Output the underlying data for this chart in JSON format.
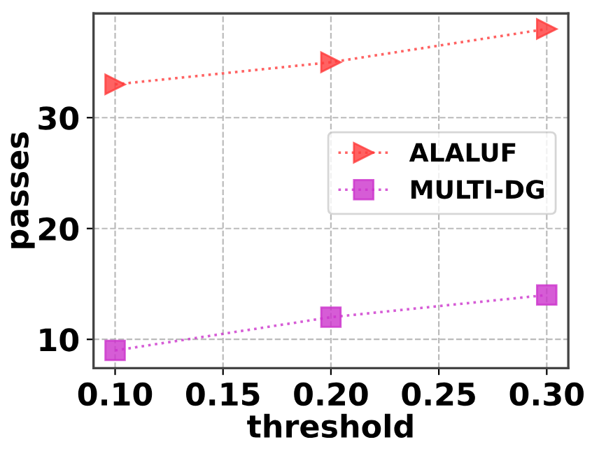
{
  "chart_data": {
    "type": "line",
    "xlabel": "threshold",
    "ylabel": "passes",
    "x": [
      0.1,
      0.2,
      0.3
    ],
    "series": [
      {
        "name": "ALALUF",
        "color": "#ff3b3b",
        "values": [
          33,
          35,
          38
        ],
        "marker": "triangle"
      },
      {
        "name": "MULTI-DG",
        "color": "#cc33cc",
        "values": [
          9,
          12,
          14
        ],
        "marker": "square"
      }
    ],
    "xlim": [
      0.09,
      0.31
    ],
    "ylim": [
      7.4,
      39.4
    ],
    "xticks": [
      {
        "value": 0.1,
        "label": "0.10"
      },
      {
        "value": 0.15,
        "label": "0.15"
      },
      {
        "value": 0.2,
        "label": "0.20"
      },
      {
        "value": 0.25,
        "label": "0.25"
      },
      {
        "value": 0.3,
        "label": "0.30"
      }
    ],
    "yticks": [
      10,
      20,
      30
    ],
    "grid": true,
    "legend": "right",
    "line_style": "dotted"
  }
}
